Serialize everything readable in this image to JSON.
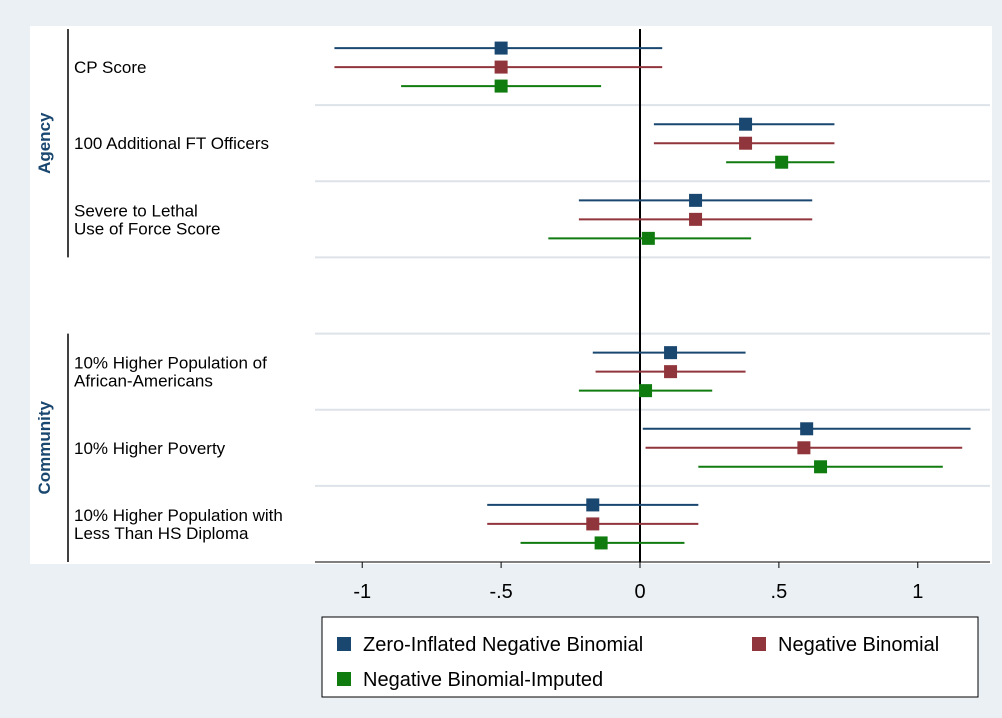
{
  "chart_data": {
    "type": "coefplot",
    "groups": [
      {
        "name": "Agency",
        "categories": [
          [
            "CP Score"
          ],
          [
            "100 Additional FT Officers"
          ],
          [
            "Severe to Lethal",
            "Use of Force Score"
          ]
        ]
      },
      {
        "name": "Community",
        "categories": [
          [
            "10% Higher Population of",
            "African-Americans"
          ],
          [
            "10% Higher Poverty"
          ],
          [
            "10% Higher Population with",
            "Less Than HS Diploma"
          ]
        ]
      }
    ],
    "series": [
      {
        "name": "Zero-Inflated Negative Binomial",
        "color": "#1a476f",
        "values": [
          -0.5,
          0.38,
          0.2,
          0.11,
          0.6,
          -0.17
        ],
        "lower": [
          -1.1,
          0.05,
          -0.22,
          -0.17,
          0.01,
          -0.55
        ],
        "upper": [
          0.08,
          0.7,
          0.62,
          0.38,
          1.19,
          0.21
        ]
      },
      {
        "name": "Negative Binomial",
        "color": "#90353b",
        "values": [
          -0.5,
          0.38,
          0.2,
          0.11,
          0.59,
          -0.17
        ],
        "lower": [
          -1.1,
          0.05,
          -0.22,
          -0.16,
          0.02,
          -0.55
        ],
        "upper": [
          0.08,
          0.7,
          0.62,
          0.38,
          1.16,
          0.21
        ]
      },
      {
        "name": "Negative Binomial-Imputed",
        "color": "#107c10",
        "values": [
          -0.5,
          0.51,
          0.03,
          0.02,
          0.65,
          -0.14
        ],
        "lower": [
          -0.86,
          0.31,
          -0.33,
          -0.22,
          0.21,
          -0.43
        ],
        "upper": [
          -0.14,
          0.7,
          0.4,
          0.26,
          1.09,
          0.16
        ]
      }
    ],
    "xlim": [
      -1.17,
      1.26
    ],
    "xticks": [
      -1,
      {
        "value": -0.5,
        "label": "-.5"
      },
      0,
      {
        "value": 0.5,
        "label": ".5"
      },
      1
    ]
  }
}
